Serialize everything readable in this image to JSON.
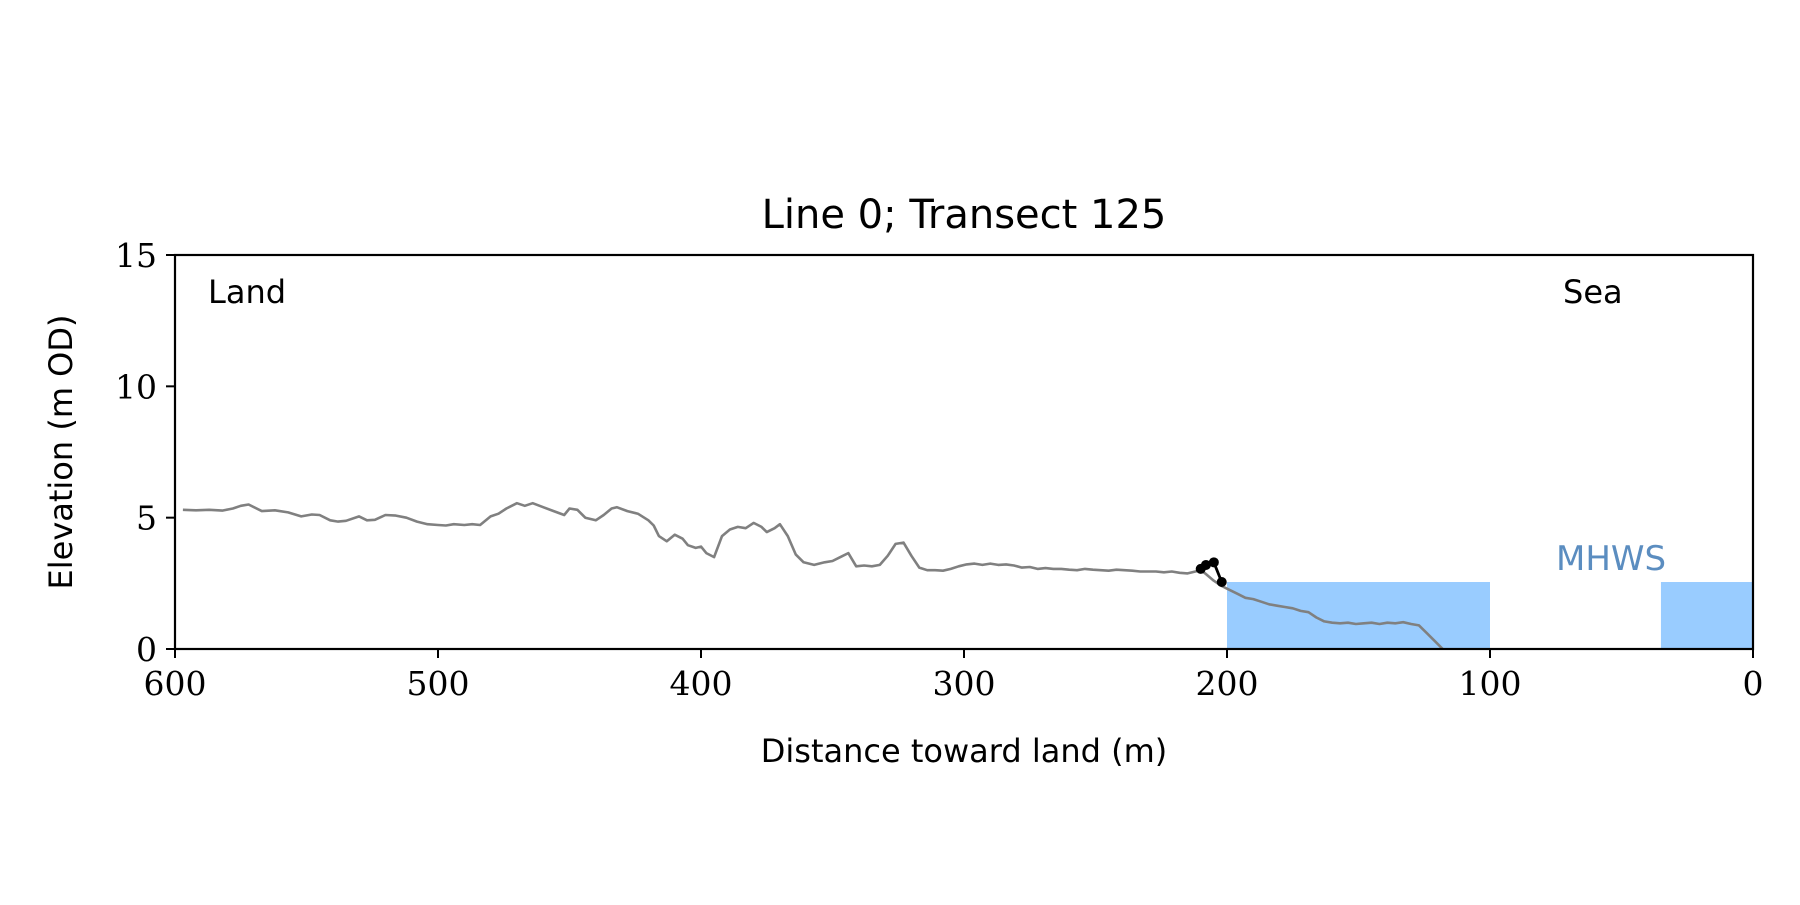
{
  "chart_data": {
    "type": "line",
    "title": "Line 0; Transect 125",
    "xlabel": "Distance toward land (m)",
    "ylabel": "Elevation (m OD)",
    "xlim": [
      600,
      0
    ],
    "ylim": [
      0,
      15
    ],
    "x_ticks": [
      600,
      500,
      400,
      300,
      200,
      100,
      0
    ],
    "y_ticks": [
      0,
      5,
      10,
      15
    ],
    "grid": false,
    "annotations": {
      "land": "Land",
      "sea": "Sea",
      "mhws": "MHWS"
    },
    "mhws_elevation": 2.55,
    "water_extents": [
      [
        200,
        100
      ],
      [
        35,
        0
      ]
    ],
    "profile": {
      "color": "#808080",
      "x": [
        597,
        592,
        587,
        582,
        578,
        575,
        572,
        567,
        562,
        557,
        552,
        548,
        545,
        541,
        538,
        535,
        530,
        527,
        524,
        520,
        516,
        512,
        508,
        504,
        500,
        497,
        494,
        490,
        487,
        484,
        480,
        477,
        474,
        470,
        467,
        464,
        460,
        456,
        452,
        450,
        447,
        444,
        440,
        437,
        434,
        432,
        428,
        424,
        420,
        418,
        416,
        413,
        410,
        407,
        405,
        402,
        400,
        398,
        395,
        392,
        389,
        386,
        383,
        380,
        377,
        375,
        372,
        370,
        367,
        364,
        361,
        357,
        353,
        350,
        347,
        344,
        341,
        338,
        335,
        332,
        329,
        326,
        323,
        320,
        317,
        314,
        311,
        308,
        305,
        302,
        299,
        296,
        293,
        290,
        287,
        284,
        281,
        278,
        275,
        272,
        269,
        266,
        263,
        260,
        257,
        254,
        251,
        248,
        245,
        242,
        239,
        236,
        233,
        230,
        227,
        224,
        221,
        218,
        215,
        212,
        210,
        208,
        205,
        202,
        199,
        196,
        193,
        190,
        187,
        184,
        181,
        178,
        175,
        172,
        169,
        166,
        163,
        160,
        157,
        154,
        151,
        148,
        145,
        142,
        139,
        136,
        133,
        130,
        127,
        124,
        121,
        118
      ],
      "y": [
        5.3,
        5.28,
        5.3,
        5.27,
        5.35,
        5.45,
        5.5,
        5.25,
        5.28,
        5.2,
        5.05,
        5.12,
        5.1,
        4.9,
        4.85,
        4.88,
        5.05,
        4.9,
        4.92,
        5.1,
        5.08,
        5.0,
        4.85,
        4.75,
        4.72,
        4.7,
        4.75,
        4.72,
        4.75,
        4.72,
        5.05,
        5.15,
        5.35,
        5.55,
        5.45,
        5.55,
        5.4,
        5.25,
        5.1,
        5.35,
        5.3,
        5.0,
        4.9,
        5.1,
        5.35,
        5.4,
        5.25,
        5.15,
        4.9,
        4.7,
        4.3,
        4.1,
        4.35,
        4.2,
        3.95,
        3.85,
        3.9,
        3.65,
        3.5,
        4.3,
        4.55,
        4.65,
        4.6,
        4.8,
        4.65,
        4.45,
        4.6,
        4.75,
        4.3,
        3.6,
        3.3,
        3.2,
        3.3,
        3.35,
        3.5,
        3.65,
        3.15,
        3.18,
        3.15,
        3.2,
        3.55,
        4.0,
        4.05,
        3.55,
        3.1,
        3.0,
        3.0,
        2.98,
        3.05,
        3.15,
        3.22,
        3.25,
        3.2,
        3.25,
        3.2,
        3.22,
        3.18,
        3.1,
        3.12,
        3.05,
        3.08,
        3.05,
        3.05,
        3.02,
        3.0,
        3.05,
        3.02,
        3.0,
        2.98,
        3.02,
        3.0,
        2.98,
        2.95,
        2.95,
        2.95,
        2.92,
        2.95,
        2.9,
        2.88,
        2.95,
        3.0,
        2.85,
        2.6,
        2.4,
        2.25,
        2.1,
        1.95,
        1.9,
        1.8,
        1.7,
        1.65,
        1.6,
        1.55,
        1.45,
        1.4,
        1.2,
        1.05,
        1.0,
        0.98,
        1.0,
        0.95,
        0.98,
        1.0,
        0.95,
        1.0,
        0.98,
        1.02,
        0.95,
        0.9,
        0.6,
        0.3,
        0.0
      ]
    },
    "cliff_points": {
      "color": "#000000",
      "x": [
        210,
        208,
        205,
        202
      ],
      "y": [
        3.05,
        3.2,
        3.3,
        2.55
      ]
    }
  },
  "colors": {
    "water": "#99CCFF",
    "mhws_label": "#5B8DC0",
    "axis": "#000000",
    "profile": "#808080",
    "cliff": "#000000"
  }
}
